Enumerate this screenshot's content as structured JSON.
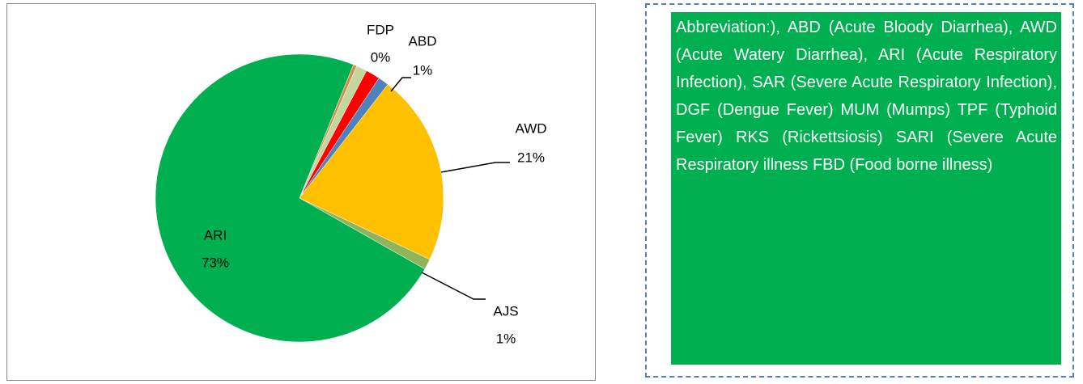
{
  "chart_data": {
    "type": "pie",
    "categories": [
      "FDP",
      null,
      null,
      "ABD",
      "AWD",
      "AJS",
      "ARI"
    ],
    "values": [
      0.4,
      1.2,
      1.6,
      1.2,
      21.5,
      1.2,
      72.9
    ],
    "value_labels": [
      "0%",
      null,
      null,
      "1%",
      "21%",
      "1%",
      "73%"
    ],
    "colors": [
      "#d98a48",
      "#c3d69b",
      "#ff0000",
      "#4f81bd",
      "#ffc000",
      "#8fb55a",
      "#00b050"
    ]
  },
  "note": {
    "text": "Abbreviation:), ABD (Acute Bloody Diarrhea), AWD (Acute Watery Diarrhea), ARI (Acute Respiratory Infection), SAR (Severe Acute Respiratory Infection), DGF (Dengue Fever) MUM (Mumps) TPF (Typhoid Fever) RKS (Rickettsiosis) SARI (Severe Acute Respiratory illness FBD (Food borne illness)"
  }
}
